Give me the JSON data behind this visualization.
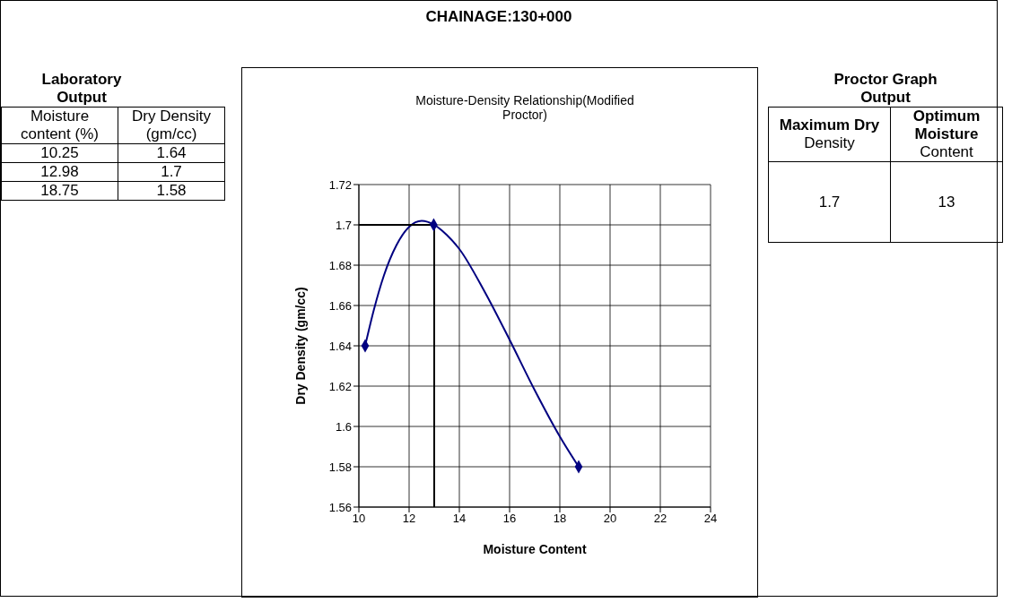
{
  "chart_data": {
    "type": "line",
    "title": "Moisture-Density Relationship(Modified Proctor)",
    "xlabel": "Moisture Content",
    "ylabel": "Dry Density (gm/cc)",
    "xlim": [
      10,
      24
    ],
    "xticks": [
      10,
      12,
      14,
      16,
      18,
      20,
      22,
      24
    ],
    "ylim": [
      1.56,
      1.72
    ],
    "yticks": [
      1.56,
      1.58,
      1.6,
      1.62,
      1.64,
      1.66,
      1.68,
      1.7,
      1.72
    ],
    "grid": true,
    "marker": "diamond",
    "series": [
      {
        "type": "scatter",
        "color": "#000080",
        "x": [
          10.25,
          12.98,
          18.75
        ],
        "values": [
          1.64,
          1.7,
          1.58
        ]
      },
      {
        "color": "#000080",
        "marker": "none",
        "x": [
          10.25,
          10.6,
          11,
          11.5,
          12,
          12.5,
          13,
          13.5,
          14,
          15,
          16,
          17,
          18,
          18.75
        ],
        "values": [
          1.64,
          1.658,
          1.675,
          1.69,
          1.699,
          1.702,
          1.7,
          1.695,
          1.688,
          1.667,
          1.643,
          1.618,
          1.595,
          1.58
        ]
      }
    ],
    "ref_lines": [
      {
        "axis": "x",
        "value": 13,
        "color": "#000000"
      },
      {
        "axis": "y",
        "value": 1.7,
        "color": "#000000"
      }
    ],
    "annotations": [
      "CHAINAGE:130+000",
      "Laboratory Output",
      "Moisture content (%)",
      "Dry Density (gm/cc)",
      "Proctor Graph Output",
      "Maximum Dry",
      "Density",
      "Optimum Moisture",
      "Content",
      "1.7",
      "13",
      "10.25",
      "1.64",
      "12.98",
      "1.7",
      "18.75",
      "1.58"
    ]
  }
}
